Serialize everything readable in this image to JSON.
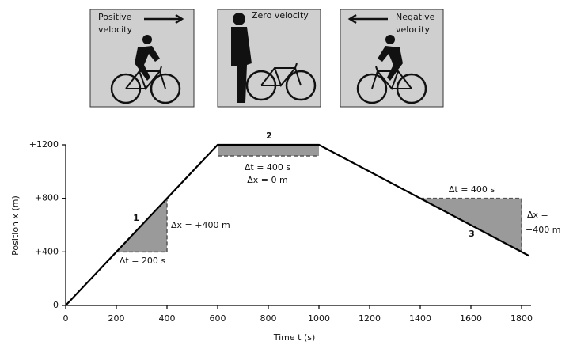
{
  "panels": [
    {
      "label": [
        "Positive",
        "velocity"
      ]
    },
    {
      "label": [
        "Zero velocity"
      ]
    },
    {
      "label": [
        "Negative",
        "velocity"
      ]
    }
  ],
  "chart_data": {
    "type": "line",
    "x_label": "Time t (s)",
    "y_label": "Position x (m)",
    "x": [
      0,
      600,
      1000,
      1830
    ],
    "values": [
      0,
      1200,
      1200,
      370
    ],
    "color": "#000000",
    "xlim": [
      0,
      1800
    ],
    "ylim": [
      0,
      1200
    ],
    "xticks": [
      0,
      200,
      400,
      600,
      800,
      1000,
      1200,
      1400,
      1600,
      1800
    ],
    "yticks": [
      {
        "value": 0,
        "label": "0"
      },
      {
        "value": 400,
        "label": "+400"
      },
      {
        "value": 800,
        "label": "+800"
      },
      {
        "value": 1200,
        "label": "+1200"
      }
    ],
    "grid": false,
    "intervals": [
      {
        "number": "1",
        "t0": 200,
        "t1": 400,
        "dt_label": "Δt = 200 s",
        "dx_label": [
          "Δx = +400 m"
        ]
      },
      {
        "number": "2",
        "t0": 600,
        "t1": 1000,
        "dt_label": "Δt = 400 s",
        "dx_label": [
          "Δx = 0 m"
        ]
      },
      {
        "number": "3",
        "t0": 1400,
        "t1": 1800,
        "dt_label": "Δt = 400 s",
        "dx_label": [
          "Δx =",
          "−400 m"
        ]
      }
    ]
  }
}
